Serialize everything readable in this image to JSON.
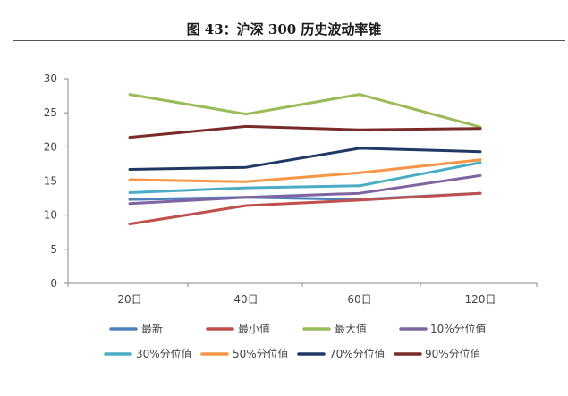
{
  "chart_data": {
    "type": "line",
    "title": "图 43：沪深 300 历史波动率锥",
    "categories": [
      "20日",
      "40日",
      "60日",
      "120日"
    ],
    "ylim": [
      0,
      30
    ],
    "yticks": [
      "0",
      "5",
      "10",
      "15",
      "20",
      "25",
      "30"
    ],
    "grid": false,
    "legend_position": "bottom",
    "series": [
      {
        "name": "最新",
        "color": "#4f81bd",
        "values": [
          12.3,
          12.6,
          12.3,
          13.2
        ]
      },
      {
        "name": "最小值",
        "color": "#c0504d",
        "values": [
          8.7,
          11.4,
          12.2,
          13.2
        ]
      },
      {
        "name": "最大值",
        "color": "#9bbb59",
        "values": [
          27.7,
          24.8,
          27.7,
          22.9
        ]
      },
      {
        "name": "10%分位值",
        "color": "#8064a2",
        "values": [
          11.7,
          12.6,
          13.2,
          15.8
        ]
      },
      {
        "name": "30%分位值",
        "color": "#4bacc6",
        "values": [
          13.3,
          14.0,
          14.3,
          17.7
        ]
      },
      {
        "name": "50%分位值",
        "color": "#f79646",
        "values": [
          15.2,
          14.9,
          16.2,
          18.1
        ]
      },
      {
        "name": "70%分位值",
        "color": "#1f3864",
        "values": [
          16.7,
          17.0,
          19.8,
          19.3
        ]
      },
      {
        "name": "90%分位值",
        "color": "#7b2a2a",
        "values": [
          21.4,
          23.0,
          22.5,
          22.7
        ]
      }
    ]
  }
}
